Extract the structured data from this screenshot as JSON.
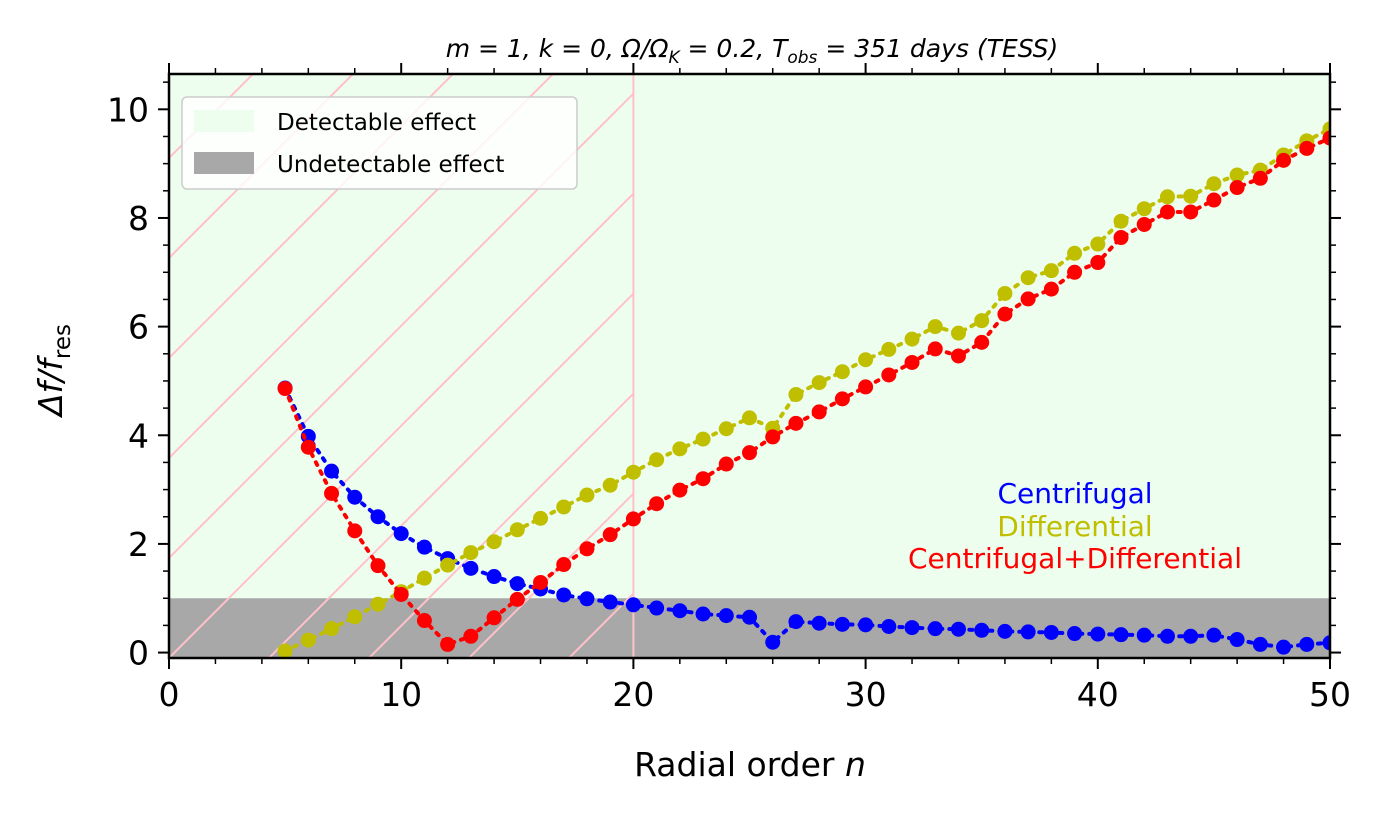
{
  "chart_data": {
    "type": "line",
    "title": {
      "prefix": "m = 1, k = 0, Ω/Ω",
      "k_sub": "K",
      "mid": " = 0.2, T",
      "obs_sub": "obs",
      "suffix": " = 351 days (TESS)"
    },
    "xlabel": {
      "text": "Radial order ",
      "var": "n"
    },
    "ylabel": {
      "delta": "Δf/f",
      "sub": "res"
    },
    "xlim": [
      0,
      50
    ],
    "ylim": [
      -0.1,
      10.65
    ],
    "xticks": [
      0,
      10,
      20,
      30,
      40,
      50
    ],
    "yticks": [
      0,
      2,
      4,
      6,
      8,
      10
    ],
    "detection_threshold": 1,
    "hatched_region_x_max": 20,
    "legend": {
      "position": "upper-left",
      "items": [
        {
          "label": "Detectable effect",
          "color": "#eefeee"
        },
        {
          "label": "Undetectable effect",
          "color": "#a8a8a8"
        }
      ]
    },
    "annotations": [
      {
        "text": "Centrifugal",
        "color": "#0000ff"
      },
      {
        "text": "Differential",
        "color": "#bfbf00"
      },
      {
        "text": "Centrifugal+Differential",
        "color": "#ff0000"
      }
    ],
    "series": [
      {
        "name": "Centrifugal",
        "color": "#0000ff",
        "x": [
          5,
          6,
          7,
          8,
          9,
          10,
          11,
          12,
          13,
          14,
          15,
          16,
          17,
          18,
          19,
          20,
          21,
          22,
          23,
          24,
          25,
          26,
          27,
          28,
          29,
          30,
          31,
          32,
          33,
          34,
          35,
          36,
          37,
          38,
          39,
          40,
          41,
          42,
          43,
          44,
          45,
          46,
          47,
          48,
          49,
          50
        ],
        "values": [
          4.87,
          3.98,
          3.34,
          2.86,
          2.5,
          2.19,
          1.94,
          1.73,
          1.55,
          1.4,
          1.27,
          1.17,
          1.06,
          0.99,
          0.93,
          0.88,
          0.82,
          0.77,
          0.71,
          0.68,
          0.65,
          0.19,
          0.57,
          0.54,
          0.52,
          0.51,
          0.48,
          0.46,
          0.44,
          0.43,
          0.41,
          0.39,
          0.38,
          0.37,
          0.35,
          0.34,
          0.33,
          0.32,
          0.3,
          0.3,
          0.32,
          0.24,
          0.15,
          0.1,
          0.15,
          0.18
        ]
      },
      {
        "name": "Differential",
        "color": "#bfbf00",
        "x": [
          5,
          6,
          7,
          8,
          9,
          10,
          11,
          12,
          13,
          14,
          15,
          16,
          17,
          18,
          19,
          20,
          21,
          22,
          23,
          24,
          25,
          26,
          27,
          28,
          29,
          30,
          31,
          32,
          33,
          34,
          35,
          36,
          37,
          38,
          39,
          40,
          41,
          42,
          43,
          44,
          45,
          46,
          47,
          48,
          49,
          50
        ],
        "values": [
          0.03,
          0.23,
          0.44,
          0.66,
          0.89,
          1.12,
          1.37,
          1.61,
          1.84,
          2.04,
          2.26,
          2.47,
          2.68,
          2.9,
          3.08,
          3.32,
          3.55,
          3.75,
          3.93,
          4.12,
          4.32,
          4.13,
          4.75,
          4.97,
          5.17,
          5.39,
          5.58,
          5.77,
          6.0,
          5.88,
          6.11,
          6.61,
          6.9,
          7.03,
          7.35,
          7.52,
          7.94,
          8.17,
          8.39,
          8.4,
          8.63,
          8.79,
          8.88,
          9.16,
          9.42,
          9.64
        ]
      },
      {
        "name": "Centrifugal+Differential",
        "color": "#ff0000",
        "x": [
          5,
          6,
          7,
          8,
          9,
          10,
          11,
          12,
          13,
          14,
          15,
          16,
          17,
          18,
          19,
          20,
          21,
          22,
          23,
          24,
          25,
          26,
          27,
          28,
          29,
          30,
          31,
          32,
          33,
          34,
          35,
          36,
          37,
          38,
          39,
          40,
          41,
          42,
          43,
          44,
          45,
          46,
          47,
          48,
          49,
          50
        ],
        "values": [
          4.86,
          3.78,
          2.93,
          2.24,
          1.6,
          1.07,
          0.59,
          0.15,
          0.3,
          0.64,
          0.98,
          1.29,
          1.62,
          1.91,
          2.17,
          2.46,
          2.74,
          2.99,
          3.2,
          3.47,
          3.68,
          3.97,
          4.22,
          4.43,
          4.67,
          4.89,
          5.11,
          5.34,
          5.59,
          5.46,
          5.71,
          6.23,
          6.51,
          6.69,
          7.0,
          7.18,
          7.64,
          7.88,
          8.11,
          8.11,
          8.33,
          8.56,
          8.73,
          9.06,
          9.28,
          9.47
        ]
      }
    ]
  }
}
